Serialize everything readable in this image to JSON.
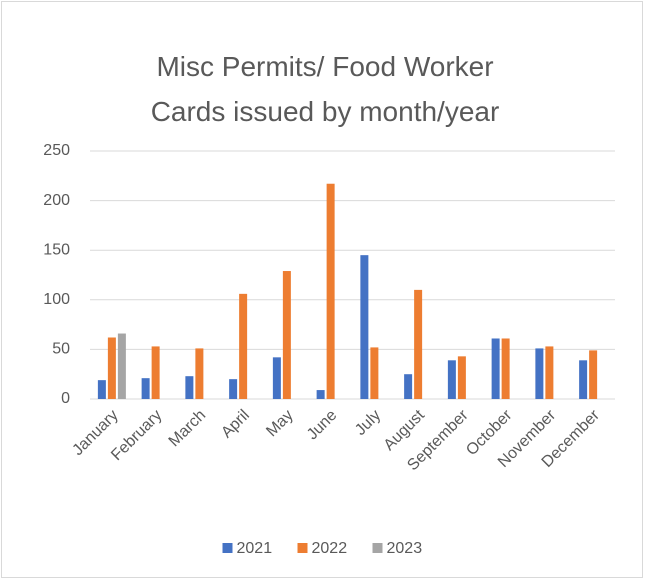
{
  "chart_data": {
    "type": "bar",
    "title": "Misc Permits/ Food Worker Cards issued by month/year",
    "categories": [
      "January",
      "February",
      "March",
      "April",
      "May",
      "June",
      "July",
      "August",
      "September",
      "October",
      "November",
      "December"
    ],
    "series": [
      {
        "name": "2021",
        "color": "#4472c4",
        "values": [
          19,
          21,
          23,
          20,
          42,
          9,
          145,
          25,
          39,
          61,
          51,
          39
        ]
      },
      {
        "name": "2022",
        "color": "#ed7d31",
        "values": [
          62,
          53,
          51,
          106,
          129,
          217,
          52,
          110,
          43,
          61,
          53,
          49
        ]
      },
      {
        "name": "2023",
        "color": "#a5a5a5",
        "values": [
          66,
          null,
          null,
          null,
          null,
          null,
          null,
          null,
          null,
          null,
          null,
          null
        ]
      }
    ],
    "ylim": [
      0,
      250
    ],
    "yticks": [
      0,
      50,
      100,
      150,
      200,
      250
    ],
    "grid": true,
    "legend": "bottom"
  }
}
